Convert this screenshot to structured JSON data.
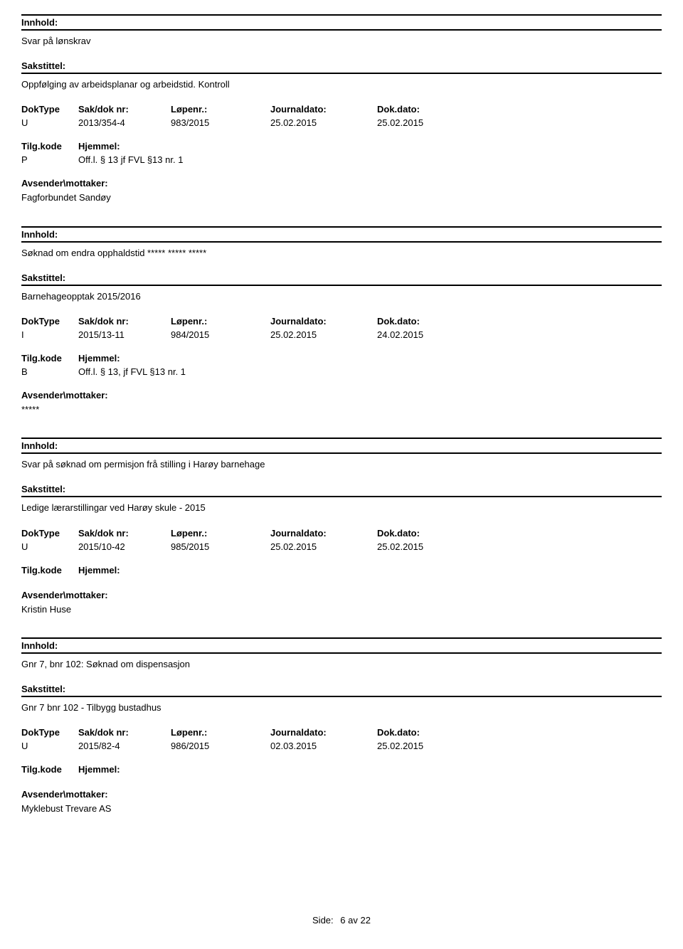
{
  "labels": {
    "innhold": "Innhold:",
    "sakstittel": "Sakstittel:",
    "doktype": "DokType",
    "saknr": "Sak/dok nr:",
    "lopenr": "Løpenr.:",
    "journaldato": "Journaldato:",
    "dokdato": "Dok.dato:",
    "tilgkode": "Tilg.kode",
    "hjemmel": "Hjemmel:",
    "avsender": "Avsender\\mottaker:"
  },
  "entries": [
    {
      "innhold": "Svar på lønskrav",
      "sakstittel": "Oppfølging av arbeidsplanar og arbeidstid. Kontroll",
      "doktype": "U",
      "saknr": "2013/354-4",
      "lopenr": "983/2015",
      "journaldato": "25.02.2015",
      "dokdato": "25.02.2015",
      "tilgkode": "P",
      "hjemmel": "Off.l. § 13 jf FVL §13 nr. 1",
      "avsender": "Fagforbundet Sandøy"
    },
    {
      "innhold": "Søknad om endra opphaldstid ***** ***** *****",
      "sakstittel": "Barnehageopptak 2015/2016",
      "doktype": "I",
      "saknr": "2015/13-11",
      "lopenr": "984/2015",
      "journaldato": "25.02.2015",
      "dokdato": "24.02.2015",
      "tilgkode": "B",
      "hjemmel": "Off.l. § 13, jf FVL §13 nr. 1",
      "avsender": "*****"
    },
    {
      "innhold": "Svar på søknad om permisjon frå stilling i Harøy barnehage",
      "sakstittel": "Ledige lærarstillingar ved Harøy skule - 2015",
      "doktype": "U",
      "saknr": "2015/10-42",
      "lopenr": "985/2015",
      "journaldato": "25.02.2015",
      "dokdato": "25.02.2015",
      "tilgkode": "",
      "hjemmel": "",
      "avsender": "Kristin Huse"
    },
    {
      "innhold": "Gnr 7, bnr 102: Søknad om dispensasjon",
      "sakstittel": "Gnr 7 bnr 102 - Tilbygg bustadhus",
      "doktype": "U",
      "saknr": "2015/82-4",
      "lopenr": "986/2015",
      "journaldato": "02.03.2015",
      "dokdato": "25.02.2015",
      "tilgkode": "",
      "hjemmel": "",
      "avsender": "Myklebust Trevare AS"
    }
  ],
  "footer": {
    "side_label": "Side:",
    "page": "6",
    "av": "av",
    "total": "22"
  }
}
